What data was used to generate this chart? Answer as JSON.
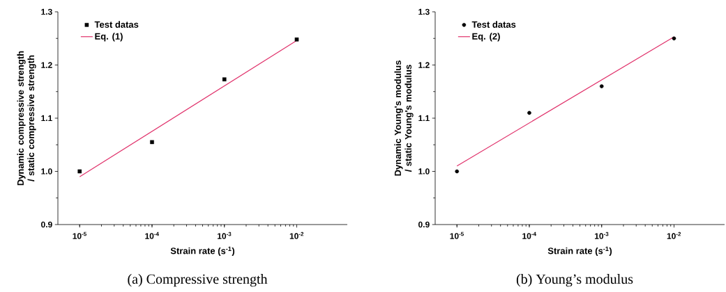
{
  "chart_data": [
    {
      "type": "scatter",
      "title": "(a) Compressive strength",
      "xlabel": "Strain rate (s$^{-1}$)",
      "ylabel": "Dynamic compressive strength / static compressive strength",
      "log": "x",
      "legend": "top left",
      "xlim": [
        5e-06,
        0.05
      ],
      "ylim": [
        0.9,
        1.3
      ],
      "xticks": [
        {
          "value": 1e-05,
          "label": "10$^{-5}$"
        },
        {
          "value": 0.0001,
          "label": "10$^{-4}$"
        },
        {
          "value": 0.001,
          "label": "10$^{-3}$"
        },
        {
          "value": 0.01,
          "label": "10$^{-2}$"
        }
      ],
      "yticks": [
        0.9,
        {
          "value": 1.0,
          "label": "1.0"
        },
        1.1,
        1.2,
        1.3
      ],
      "series": [
        {
          "name": "Test datas",
          "marker": "square",
          "color": "#000000",
          "x": [
            1e-05,
            0.0001,
            0.001,
            0.01
          ],
          "values": [
            1.0,
            1.055,
            1.173,
            1.248
          ]
        },
        {
          "name": "Eq. (1)",
          "type": "line",
          "color": "#e0306a",
          "x": [
            1e-05,
            0.01
          ],
          "values": [
            0.99,
            1.246
          ]
        }
      ]
    },
    {
      "type": "scatter",
      "title": "(b) Young’s modulus",
      "xlabel": "Strain rate (s$^{-1}$)",
      "ylabel": "Dynamic Young's modulus / static Young's modulus",
      "log": "x",
      "legend": "top left",
      "xlim": [
        5e-06,
        0.05
      ],
      "ylim": [
        0.9,
        1.3
      ],
      "xticks": [
        {
          "value": 1e-05,
          "label": "10$^{-5}$"
        },
        {
          "value": 0.0001,
          "label": "10$^{-4}$"
        },
        {
          "value": 0.001,
          "label": "10$^{-3}$"
        },
        {
          "value": 0.01,
          "label": "10$^{-2}$"
        }
      ],
      "yticks": [
        0.9,
        {
          "value": 1.0,
          "label": "1.0"
        },
        1.1,
        1.2,
        1.3
      ],
      "series": [
        {
          "name": "Test datas",
          "marker": "circle",
          "color": "#000000",
          "x": [
            1e-05,
            0.0001,
            0.001,
            0.01
          ],
          "values": [
            1.0,
            1.11,
            1.16,
            1.25
          ]
        },
        {
          "name": "Eq. (2)",
          "type": "line",
          "color": "#e0306a",
          "x": [
            1e-05,
            0.01
          ],
          "values": [
            1.01,
            1.253
          ]
        }
      ]
    }
  ]
}
